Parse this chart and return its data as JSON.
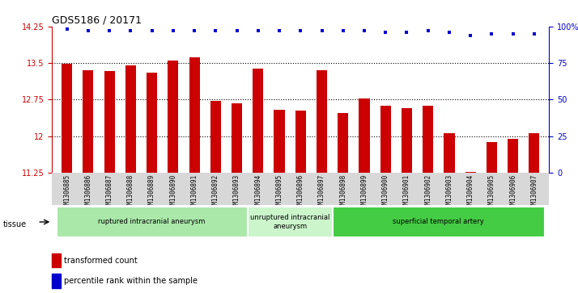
{
  "title": "GDS5186 / 20171",
  "samples": [
    "GSM1306885",
    "GSM1306886",
    "GSM1306887",
    "GSM1306888",
    "GSM1306889",
    "GSM1306890",
    "GSM1306891",
    "GSM1306892",
    "GSM1306893",
    "GSM1306894",
    "GSM1306895",
    "GSM1306896",
    "GSM1306897",
    "GSM1306898",
    "GSM1306899",
    "GSM1306900",
    "GSM1306901",
    "GSM1306902",
    "GSM1306903",
    "GSM1306904",
    "GSM1306905",
    "GSM1306906",
    "GSM1306907"
  ],
  "bar_values": [
    13.48,
    13.35,
    13.33,
    13.45,
    13.3,
    13.55,
    13.62,
    12.72,
    12.68,
    13.38,
    12.55,
    12.52,
    13.35,
    12.48,
    12.78,
    12.62,
    12.58,
    12.63,
    12.07,
    11.27,
    11.88,
    11.95,
    12.07
  ],
  "percentile_values": [
    98,
    97,
    97,
    97,
    97,
    97,
    97,
    97,
    97,
    97,
    97,
    97,
    97,
    97,
    97,
    96,
    96,
    97,
    96,
    94,
    95,
    95,
    95
  ],
  "bar_color": "#cc0000",
  "dot_color": "#0000cc",
  "ylim_left": [
    11.25,
    14.25
  ],
  "ylim_right": [
    0,
    100
  ],
  "yticks_left": [
    11.25,
    12.0,
    12.75,
    13.5,
    14.25
  ],
  "yticks_right": [
    0,
    25,
    50,
    75,
    100
  ],
  "ytick_labels_left": [
    "11.25",
    "12",
    "12.75",
    "13.5",
    "14.25"
  ],
  "ytick_labels_right": [
    "0",
    "25",
    "50",
    "75",
    "100%"
  ],
  "grid_values": [
    12.0,
    12.75,
    13.5
  ],
  "tissue_groups": [
    {
      "label": "ruptured intracranial aneurysm",
      "start": 0,
      "end": 9,
      "color": "#aae8aa"
    },
    {
      "label": "unruptured intracranial\naneurysm",
      "start": 9,
      "end": 13,
      "color": "#ccf5cc"
    },
    {
      "label": "superficial temporal artery",
      "start": 13,
      "end": 23,
      "color": "#44cc44"
    }
  ],
  "legend_bar_label": "transformed count",
  "legend_dot_label": "percentile rank within the sample",
  "tissue_label": "tissue",
  "bg_color": "#d8d8d8"
}
